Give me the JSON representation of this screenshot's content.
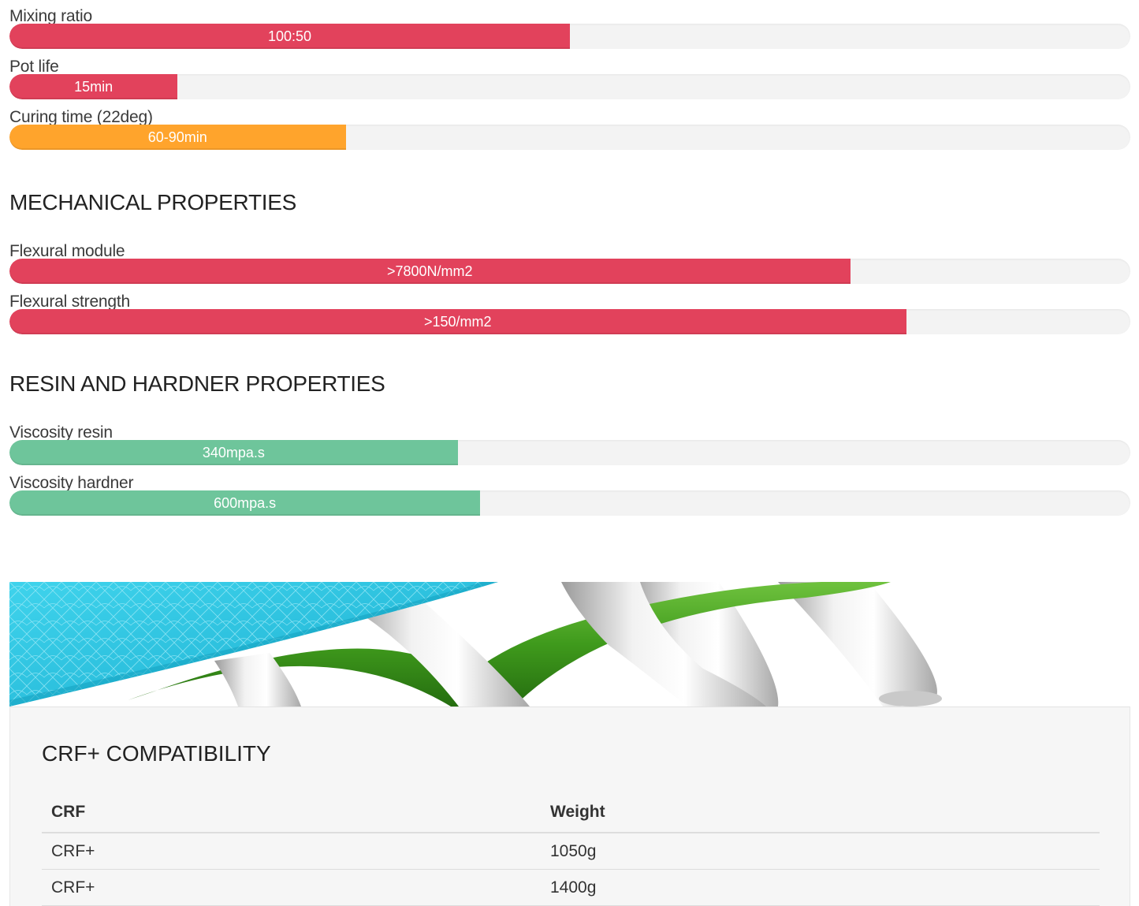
{
  "processing": {
    "rows": [
      {
        "label": "Mixing ratio",
        "value": "100:50",
        "fill": 0.5,
        "color": "#e2425c"
      },
      {
        "label": "Pot life",
        "value": "15min",
        "fill": 0.15,
        "color": "#e2425c"
      },
      {
        "label": "Curing time (22deg)",
        "value": "60-90min",
        "fill": 0.3,
        "color": "#ffa42c"
      }
    ]
  },
  "mechanical": {
    "title": "MECHANICAL PROPERTIES",
    "rows": [
      {
        "label": "Flexural module",
        "value": ">7800N/mm2",
        "fill": 0.75,
        "color": "#e2425c"
      },
      {
        "label": "Flexural strength",
        "value": ">150/mm2",
        "fill": 0.8,
        "color": "#e2425c"
      }
    ]
  },
  "resin": {
    "title": "RESIN AND HARDNER PROPERTIES",
    "rows": [
      {
        "label": "Viscosity resin",
        "value": "340mpa.s",
        "fill": 0.4,
        "color": "#6ec59b"
      },
      {
        "label": "Viscosity hardner",
        "value": "600mpa.s",
        "fill": 0.42,
        "color": "#6ec59b"
      }
    ]
  },
  "compatibility": {
    "title": "CRF+ COMPATIBILITY",
    "headers": [
      "CRF",
      "Weight"
    ],
    "rows": [
      [
        "CRF+",
        "1050g"
      ],
      [
        "CRF+",
        "1400g"
      ]
    ]
  }
}
